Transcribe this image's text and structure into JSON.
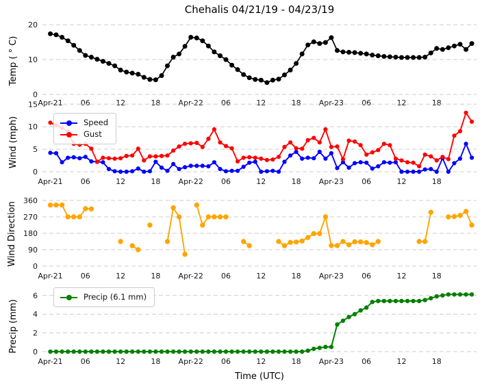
{
  "title": "Chehalis 04/21/19 - 04/23/19",
  "grid_color": "#cccccc",
  "x": {
    "label": "Time (UTC)",
    "tick_labels": [
      "Apr-21",
      "06",
      "12",
      "18",
      "Apr-22",
      "06",
      "12",
      "18",
      "Apr-23",
      "06",
      "12",
      "18"
    ],
    "tick_hours": [
      0,
      6,
      12,
      18,
      24,
      30,
      36,
      42,
      48,
      54,
      60,
      66
    ],
    "hours_shown": 73
  },
  "chart_data": [
    {
      "id": "temp",
      "type": "line",
      "ylabel": "Temp ( ° C)",
      "yticks": [
        0,
        10,
        20
      ],
      "ylim": [
        0,
        21.6
      ],
      "grid": true,
      "series": [
        {
          "key": "temp",
          "name": "Temp",
          "color": "#000000",
          "values": [
            17.4,
            17.1,
            16.4,
            15.4,
            14.1,
            12.6,
            11.2,
            10.7,
            10.1,
            9.5,
            8.9,
            8.2,
            7.0,
            6.4,
            6.1,
            5.8,
            4.9,
            4.3,
            4.2,
            5.4,
            8.2,
            10.7,
            11.6,
            13.8,
            16.4,
            16.2,
            15.4,
            13.9,
            12.2,
            11.1,
            10.0,
            8.4,
            7.1,
            5.7,
            4.8,
            4.3,
            4.1,
            3.4,
            4.1,
            4.4,
            5.6,
            7.0,
            8.9,
            11.6,
            14.2,
            15.1,
            14.6,
            14.9,
            16.3,
            12.6,
            12.2,
            12.1,
            12.0,
            11.8,
            11.6,
            11.3,
            11.1,
            10.9,
            10.8,
            10.7,
            10.6,
            10.6,
            10.6,
            10.6,
            10.7,
            11.9,
            13.2,
            12.9,
            13.4,
            13.9,
            14.4,
            12.9,
            14.6
          ]
        }
      ]
    },
    {
      "id": "wind",
      "type": "line",
      "ylabel": "Wind (mph)",
      "yticks": [
        0,
        5,
        10,
        15
      ],
      "ylim": [
        0,
        15.8
      ],
      "grid": true,
      "legend": {
        "position": "upper left",
        "entries": [
          "Speed",
          "Gust"
        ]
      },
      "series": [
        {
          "key": "speed",
          "name": "Speed",
          "color": "#0000ff",
          "values": [
            4.2,
            4.1,
            2.1,
            3.1,
            3.2,
            3.0,
            3.3,
            2.3,
            2.2,
            2.1,
            0.6,
            0.1,
            0.0,
            0.0,
            0.1,
            0.7,
            0.0,
            0.1,
            2.2,
            0.9,
            0.2,
            1.7,
            0.6,
            1.0,
            1.3,
            1.3,
            1.3,
            1.2,
            2.1,
            0.6,
            0.1,
            0.2,
            0.2,
            1.1,
            2.0,
            2.2,
            0.0,
            0.1,
            0.2,
            0.0,
            2.2,
            3.6,
            4.4,
            2.9,
            3.1,
            3.0,
            4.4,
            2.9,
            4.1,
            0.8,
            2.1,
            0.9,
            1.9,
            2.1,
            2.0,
            0.7,
            1.2,
            2.1,
            2.0,
            2.1,
            0.0,
            0.0,
            0.0,
            0.0,
            0.5,
            0.6,
            0.0,
            3.0,
            0.0,
            1.9,
            2.9,
            6.2,
            3.1
          ]
        },
        {
          "key": "gust",
          "name": "Gust",
          "color": "#ff0000",
          "values": [
            10.9,
            10.3,
            9.7,
            8.9,
            6.2,
            6.0,
            6.2,
            5.1,
            2.2,
            3.1,
            3.0,
            2.9,
            3.0,
            3.5,
            3.6,
            5.1,
            2.5,
            3.4,
            3.4,
            3.5,
            3.6,
            4.7,
            5.6,
            6.2,
            6.3,
            6.4,
            5.5,
            7.3,
            9.4,
            6.5,
            5.7,
            5.2,
            2.3,
            3.1,
            3.2,
            3.1,
            2.9,
            2.6,
            2.7,
            3.3,
            5.5,
            6.5,
            5.2,
            5.1,
            7.0,
            7.5,
            6.5,
            9.4,
            5.5,
            5.6,
            2.8,
            6.9,
            6.7,
            5.9,
            3.8,
            4.3,
            4.8,
            6.2,
            5.9,
            2.9,
            2.5,
            2.1,
            2.0,
            1.2,
            3.8,
            3.4,
            2.5,
            3.3,
            2.8,
            8.0,
            9.0,
            13.1,
            11.1
          ]
        }
      ]
    },
    {
      "id": "wind-direction",
      "type": "line",
      "ylabel": "Wind Direction",
      "yticks": [
        0,
        90,
        180,
        270,
        360
      ],
      "ylim": [
        0,
        360
      ],
      "grid": true,
      "series": [
        {
          "key": "wind-direction",
          "name": "Wind Direction",
          "color": "#ffa500",
          "values": [
            335,
            335,
            335,
            270,
            270,
            270,
            315,
            313,
            null,
            null,
            null,
            null,
            135,
            null,
            112,
            90,
            null,
            225,
            null,
            null,
            135,
            320,
            270,
            65,
            null,
            335,
            225,
            270,
            270,
            270,
            270,
            null,
            null,
            135,
            112,
            null,
            null,
            null,
            null,
            135,
            112,
            130,
            132,
            138,
            157,
            178,
            178,
            270,
            113,
            113,
            135,
            117,
            133,
            133,
            129,
            117,
            135,
            null,
            null,
            null,
            null,
            null,
            null,
            135,
            135,
            295,
            null,
            null,
            270,
            272,
            278,
            300,
            225
          ]
        }
      ]
    },
    {
      "id": "precip",
      "type": "line",
      "ylabel": "Precip (mm)",
      "yticks": [
        0,
        2,
        4,
        6
      ],
      "ylim": [
        0,
        6.35
      ],
      "grid": true,
      "legend": {
        "position": "upper left",
        "entries": [
          "Precip (6.1 mm)"
        ]
      },
      "total_mm": 6.1,
      "series": [
        {
          "key": "precip",
          "name": "Precip (6.1 mm)",
          "color": "#008000",
          "values": [
            0.0,
            0.0,
            0.0,
            0.0,
            0.0,
            0.0,
            0.0,
            0.0,
            0.0,
            0.0,
            0.0,
            0.0,
            0.0,
            0.0,
            0.0,
            0.0,
            0.0,
            0.0,
            0.0,
            0.0,
            0.0,
            0.0,
            0.0,
            0.0,
            0.0,
            0.0,
            0.0,
            0.0,
            0.0,
            0.0,
            0.0,
            0.0,
            0.0,
            0.0,
            0.0,
            0.0,
            0.0,
            0.0,
            0.0,
            0.0,
            0.0,
            0.0,
            0.0,
            0.0,
            0.1,
            0.3,
            0.4,
            0.5,
            0.5,
            2.9,
            3.3,
            3.7,
            4.0,
            4.4,
            4.7,
            5.3,
            5.4,
            5.4,
            5.4,
            5.4,
            5.4,
            5.4,
            5.4,
            5.4,
            5.5,
            5.7,
            5.9,
            6.0,
            6.1,
            6.1,
            6.1,
            6.1,
            6.1
          ]
        }
      ]
    }
  ]
}
